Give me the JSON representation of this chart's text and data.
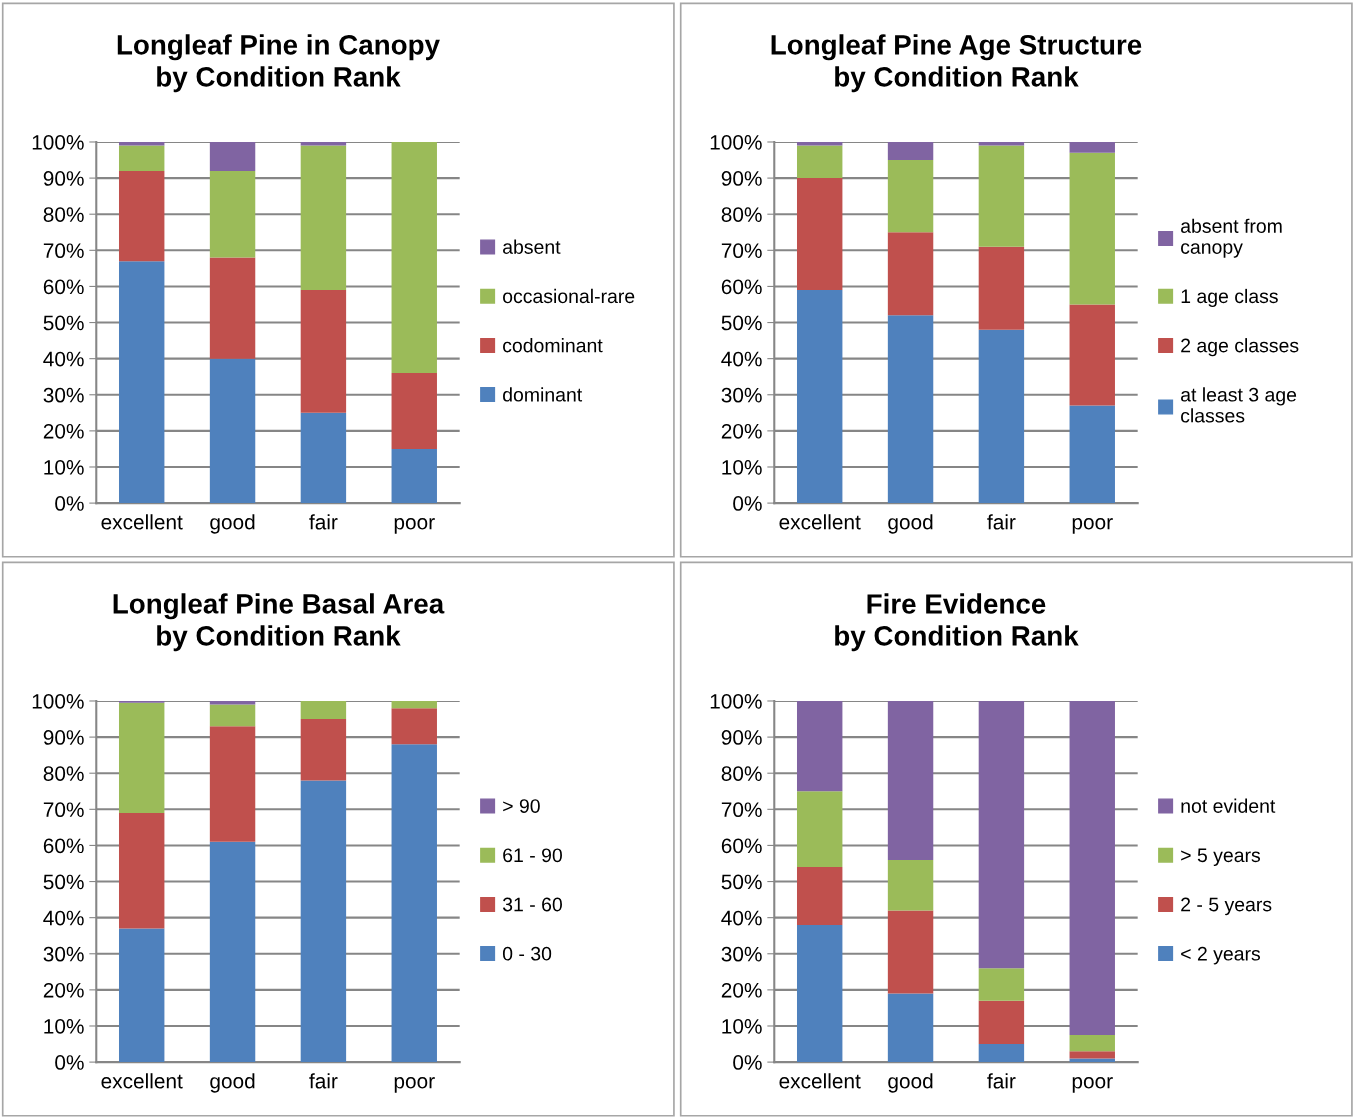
{
  "chart_data": [
    {
      "type": "bar",
      "stacked": true,
      "title": "Longleaf Pine in Canopy\nby Condition Rank",
      "categories": [
        "excellent",
        "good",
        "fair",
        "poor"
      ],
      "ylim": [
        0,
        100
      ],
      "yticks": [
        {
          "value": 0,
          "label": "0%"
        },
        {
          "value": 10,
          "label": "10%"
        },
        {
          "value": 20,
          "label": "20%"
        },
        {
          "value": 30,
          "label": "30%"
        },
        {
          "value": 40,
          "label": "40%"
        },
        {
          "value": 50,
          "label": "50%"
        },
        {
          "value": 60,
          "label": "60%"
        },
        {
          "value": 70,
          "label": "70%"
        },
        {
          "value": 80,
          "label": "80%"
        },
        {
          "value": 90,
          "label": "90%"
        },
        {
          "value": 100,
          "label": "100%"
        }
      ],
      "grid": "y",
      "legend": "right",
      "series": [
        {
          "name": "dominant",
          "color": "#4f81bd",
          "values": [
            67,
            40,
            25,
            15
          ]
        },
        {
          "name": "codominant",
          "color": "#c0504d",
          "values": [
            25,
            28,
            34,
            21
          ]
        },
        {
          "name": "occasional-rare",
          "color": "#9bbb59",
          "values": [
            7,
            24,
            40,
            64
          ]
        },
        {
          "name": "absent",
          "color": "#8064a2",
          "values": [
            1,
            8,
            1,
            0
          ]
        }
      ]
    },
    {
      "type": "bar",
      "stacked": true,
      "title": "Longleaf Pine Age Structure\nby Condition Rank",
      "categories": [
        "excellent",
        "good",
        "fair",
        "poor"
      ],
      "ylim": [
        0,
        100
      ],
      "yticks": [
        {
          "value": 0,
          "label": "0%"
        },
        {
          "value": 10,
          "label": "10%"
        },
        {
          "value": 20,
          "label": "20%"
        },
        {
          "value": 30,
          "label": "30%"
        },
        {
          "value": 40,
          "label": "40%"
        },
        {
          "value": 50,
          "label": "50%"
        },
        {
          "value": 60,
          "label": "60%"
        },
        {
          "value": 70,
          "label": "70%"
        },
        {
          "value": 80,
          "label": "80%"
        },
        {
          "value": 90,
          "label": "90%"
        },
        {
          "value": 100,
          "label": "100%"
        }
      ],
      "grid": "y",
      "legend": "right",
      "series": [
        {
          "name": "at least 3 age\nclasses",
          "color": "#4f81bd",
          "values": [
            59,
            52,
            48,
            27
          ]
        },
        {
          "name": "2 age classes",
          "color": "#c0504d",
          "values": [
            31,
            23,
            23,
            28
          ]
        },
        {
          "name": "1 age class",
          "color": "#9bbb59",
          "values": [
            9,
            20,
            28,
            42
          ]
        },
        {
          "name": "absent from\ncanopy",
          "color": "#8064a2",
          "values": [
            1,
            5,
            1,
            3
          ]
        }
      ]
    },
    {
      "type": "bar",
      "stacked": true,
      "title": "Longleaf Pine Basal Area\nby Condition Rank",
      "categories": [
        "excellent",
        "good",
        "fair",
        "poor"
      ],
      "ylim": [
        0,
        100
      ],
      "yticks": [
        {
          "value": 0,
          "label": "0%"
        },
        {
          "value": 10,
          "label": "10%"
        },
        {
          "value": 20,
          "label": "20%"
        },
        {
          "value": 30,
          "label": "30%"
        },
        {
          "value": 40,
          "label": "40%"
        },
        {
          "value": 50,
          "label": "50%"
        },
        {
          "value": 60,
          "label": "60%"
        },
        {
          "value": 70,
          "label": "70%"
        },
        {
          "value": 80,
          "label": "80%"
        },
        {
          "value": 90,
          "label": "90%"
        },
        {
          "value": 100,
          "label": "100%"
        }
      ],
      "grid": "y",
      "legend": "right",
      "series": [
        {
          "name": "0 - 30",
          "color": "#4f81bd",
          "values": [
            37,
            61,
            78,
            88
          ]
        },
        {
          "name": "31 - 60",
          "color": "#c0504d",
          "values": [
            32,
            32,
            17,
            10
          ]
        },
        {
          "name": "61 - 90",
          "color": "#9bbb59",
          "values": [
            30.5,
            6,
            5,
            2
          ]
        },
        {
          "name": "> 90",
          "color": "#8064a2",
          "values": [
            0.5,
            1,
            0,
            0
          ]
        }
      ]
    },
    {
      "type": "bar",
      "stacked": true,
      "title": "Fire Evidence\nby Condition Rank",
      "categories": [
        "excellent",
        "good",
        "fair",
        "poor"
      ],
      "ylim": [
        0,
        100
      ],
      "yticks": [
        {
          "value": 0,
          "label": "0%"
        },
        {
          "value": 10,
          "label": "10%"
        },
        {
          "value": 20,
          "label": "20%"
        },
        {
          "value": 30,
          "label": "30%"
        },
        {
          "value": 40,
          "label": "40%"
        },
        {
          "value": 50,
          "label": "50%"
        },
        {
          "value": 60,
          "label": "60%"
        },
        {
          "value": 70,
          "label": "70%"
        },
        {
          "value": 80,
          "label": "80%"
        },
        {
          "value": 90,
          "label": "90%"
        },
        {
          "value": 100,
          "label": "100%"
        }
      ],
      "grid": "y",
      "legend": "right",
      "series": [
        {
          "name": "< 2 years",
          "color": "#4f81bd",
          "values": [
            38,
            19,
            5,
            1
          ]
        },
        {
          "name": "2 - 5 years",
          "color": "#c0504d",
          "values": [
            16,
            23,
            12,
            2
          ]
        },
        {
          "name": "> 5 years",
          "color": "#9bbb59",
          "values": [
            21,
            14,
            9,
            4.5
          ]
        },
        {
          "name": "not evident",
          "color": "#8064a2",
          "values": [
            25,
            44,
            74,
            92.5
          ]
        }
      ]
    }
  ]
}
